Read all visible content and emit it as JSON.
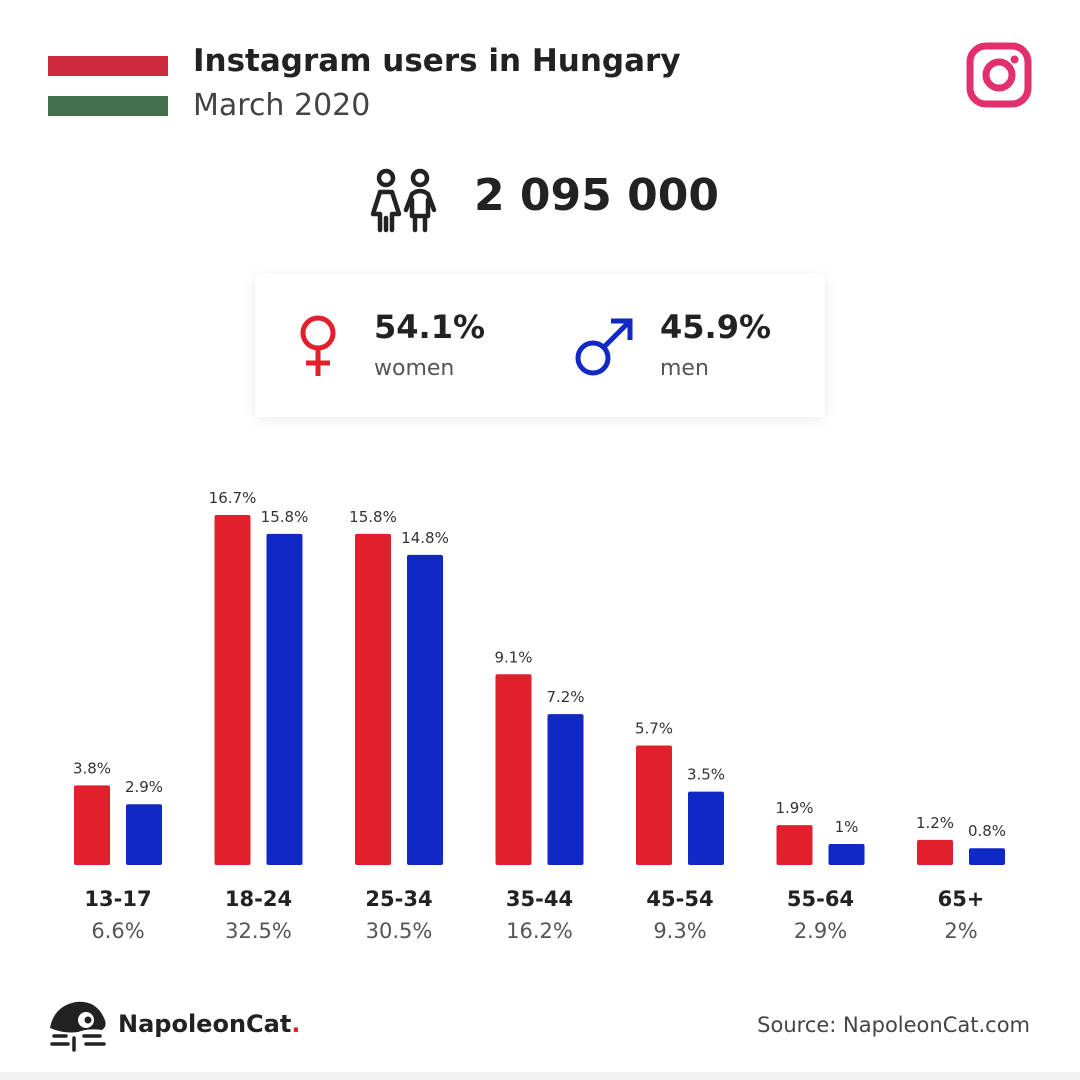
{
  "header": {
    "title": "Instagram users in Hungary",
    "subtitle": "March 2020",
    "flag_colors": [
      "#CD2A3E",
      "#436F4D"
    ],
    "instagram_color": "#E1306C",
    "icon": "instagram-icon"
  },
  "total": {
    "value": "2 095 000",
    "icon": "users-icon"
  },
  "gender": {
    "women": {
      "percent": "54.1%",
      "label": "women",
      "color": "#E1202B",
      "icon": "female-symbol-icon"
    },
    "men": {
      "percent": "45.9%",
      "label": "men",
      "color": "#1028C4",
      "icon": "male-symbol-icon"
    }
  },
  "chart_data": {
    "type": "bar",
    "categories": [
      "13-17",
      "18-24",
      "25-34",
      "35-44",
      "45-54",
      "55-64",
      "65+"
    ],
    "category_totals": [
      "6.6%",
      "32.5%",
      "30.5%",
      "16.2%",
      "9.3%",
      "2.9%",
      "2%"
    ],
    "series": [
      {
        "values": [
          3.8,
          16.7,
          15.8,
          9.1,
          5.7,
          1.9,
          1.2
        ],
        "labels": [
          "3.8%",
          "16.7%",
          "15.8%",
          "9.1%",
          "5.7%",
          "1.9%",
          "1.2%"
        ],
        "color": "#E1202B"
      },
      {
        "values": [
          2.9,
          15.8,
          14.8,
          7.2,
          3.5,
          1.0,
          0.8
        ],
        "labels": [
          "2.9%",
          "15.8%",
          "14.8%",
          "7.2%",
          "3.5%",
          "1%",
          "0.8%"
        ],
        "color": "#1028C4"
      }
    ],
    "title": "",
    "xlabel": "",
    "ylabel": "",
    "ylim": [
      0,
      16.7
    ],
    "grid": false,
    "legend": "none"
  },
  "footer": {
    "brand": "NapoleonCat",
    "brand_dot": ".",
    "source": "Source: NapoleonCat.com",
    "logo_icon": "napoleoncat-logo-icon"
  }
}
